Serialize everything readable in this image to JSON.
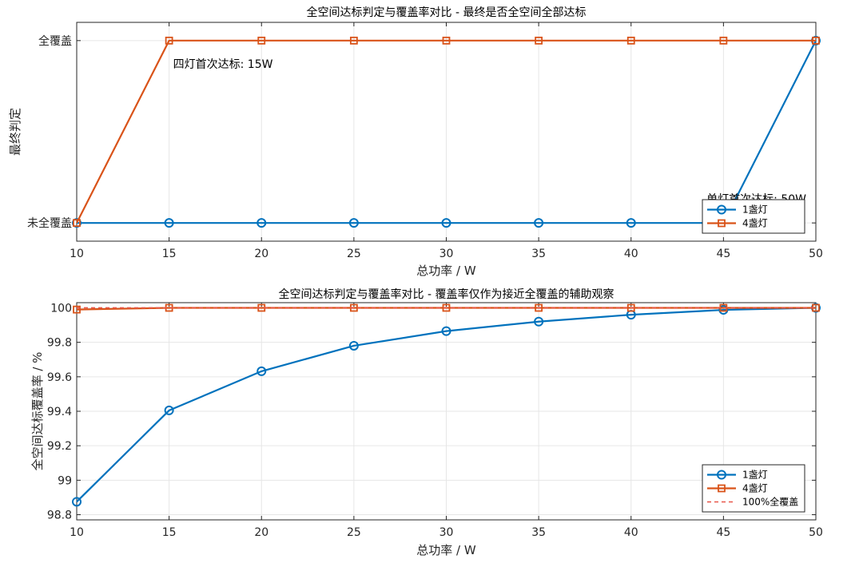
{
  "chart_data": [
    {
      "type": "line",
      "title": "全空间达标判定与覆盖率对比 - 最终是否全空间全部达标",
      "xlabel": "总功率 / W",
      "ylabel": "最终判定",
      "x": [
        10,
        15,
        20,
        25,
        30,
        35,
        40,
        45,
        50
      ],
      "xlim": [
        10,
        50
      ],
      "ylim": [
        0,
        1
      ],
      "y_tick_labels": [
        "未全覆盖",
        "全覆盖"
      ],
      "grid": true,
      "legend_position": "bottom-right",
      "series": [
        {
          "name": "1盏灯",
          "color": "#0072BD",
          "marker": "circle",
          "values": [
            0,
            0,
            0,
            0,
            0,
            0,
            0,
            0,
            1
          ]
        },
        {
          "name": "4盏灯",
          "color": "#D95319",
          "marker": "square",
          "values": [
            0,
            1,
            1,
            1,
            1,
            1,
            1,
            1,
            1
          ]
        }
      ],
      "annotations": [
        {
          "text": "四灯首次达标: 15W",
          "x": 15,
          "y": 1
        },
        {
          "text": "单灯首次达标: 50W",
          "x": 50,
          "y": 0
        }
      ]
    },
    {
      "type": "line",
      "title": "全空间达标判定与覆盖率对比 - 覆盖率仅作为接近全覆盖的辅助观察",
      "xlabel": "总功率 / W",
      "ylabel": "全空间达标覆盖率 / %",
      "x": [
        10,
        15,
        20,
        25,
        30,
        35,
        40,
        45,
        50
      ],
      "xlim": [
        10,
        50
      ],
      "ylim": [
        98.8,
        100
      ],
      "y_ticks": [
        "98.8",
        "99",
        "99.2",
        "99.4",
        "99.6",
        "99.8",
        "100"
      ],
      "grid": true,
      "legend_position": "bottom-right",
      "series": [
        {
          "name": "1盏灯",
          "color": "#0072BD",
          "marker": "circle",
          "values": [
            98.875,
            99.405,
            99.632,
            99.78,
            99.865,
            99.92,
            99.96,
            99.988,
            100
          ]
        },
        {
          "name": "4盏灯",
          "color": "#D95319",
          "marker": "square",
          "values": [
            99.99,
            100,
            100,
            100,
            100,
            100,
            100,
            100,
            100
          ]
        },
        {
          "name": "100%全覆盖",
          "color": "#E8574A",
          "style": "dashed",
          "values": [
            100,
            100,
            100,
            100,
            100,
            100,
            100,
            100,
            100
          ]
        }
      ]
    }
  ]
}
